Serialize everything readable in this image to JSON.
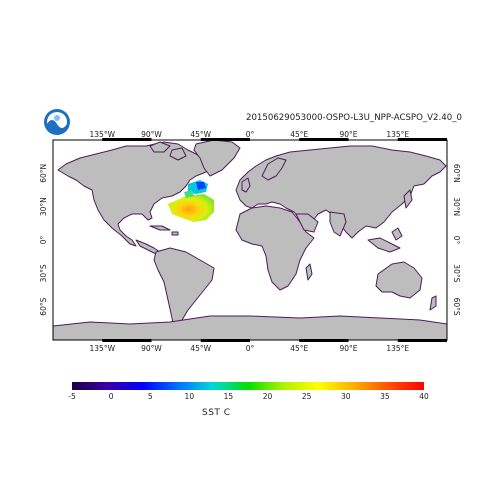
{
  "title": "20150629053000-OSPO-L3U_NPP-ACSPO_V2.40_0",
  "logo": {
    "name": "noaa-logo"
  },
  "map": {
    "land_color": "#bdbdbd",
    "ocean_color": "#ffffff",
    "coast_color": "#4b1d57",
    "frame_color": "#000000"
  },
  "axes": {
    "lon_ticks": [
      {
        "lon": -135,
        "label": "135°W"
      },
      {
        "lon": -90,
        "label": "90°W"
      },
      {
        "lon": -45,
        "label": "45°W"
      },
      {
        "lon": 0,
        "label": "0°"
      },
      {
        "lon": 45,
        "label": "45°E"
      },
      {
        "lon": 90,
        "label": "90°E"
      },
      {
        "lon": 135,
        "label": "135°E"
      }
    ],
    "lat_ticks": [
      {
        "lat": 60,
        "label": "60°N"
      },
      {
        "lat": 30,
        "label": "30°N"
      },
      {
        "lat": 0,
        "label": "0°"
      },
      {
        "lat": -30,
        "label": "30°S"
      },
      {
        "lat": -60,
        "label": "60°S"
      }
    ]
  },
  "colorbar": {
    "label": "SST  C",
    "ticks": [
      "-5",
      "0",
      "5",
      "10",
      "15",
      "20",
      "25",
      "30",
      "35",
      "40"
    ],
    "min": -5,
    "max": 40,
    "colors": [
      "#1a0044",
      "#3a00a8",
      "#0000ff",
      "#0070ff",
      "#00d8d8",
      "#00e000",
      "#b0f000",
      "#ffff00",
      "#ffb000",
      "#ff5000",
      "#ff0000"
    ]
  }
}
